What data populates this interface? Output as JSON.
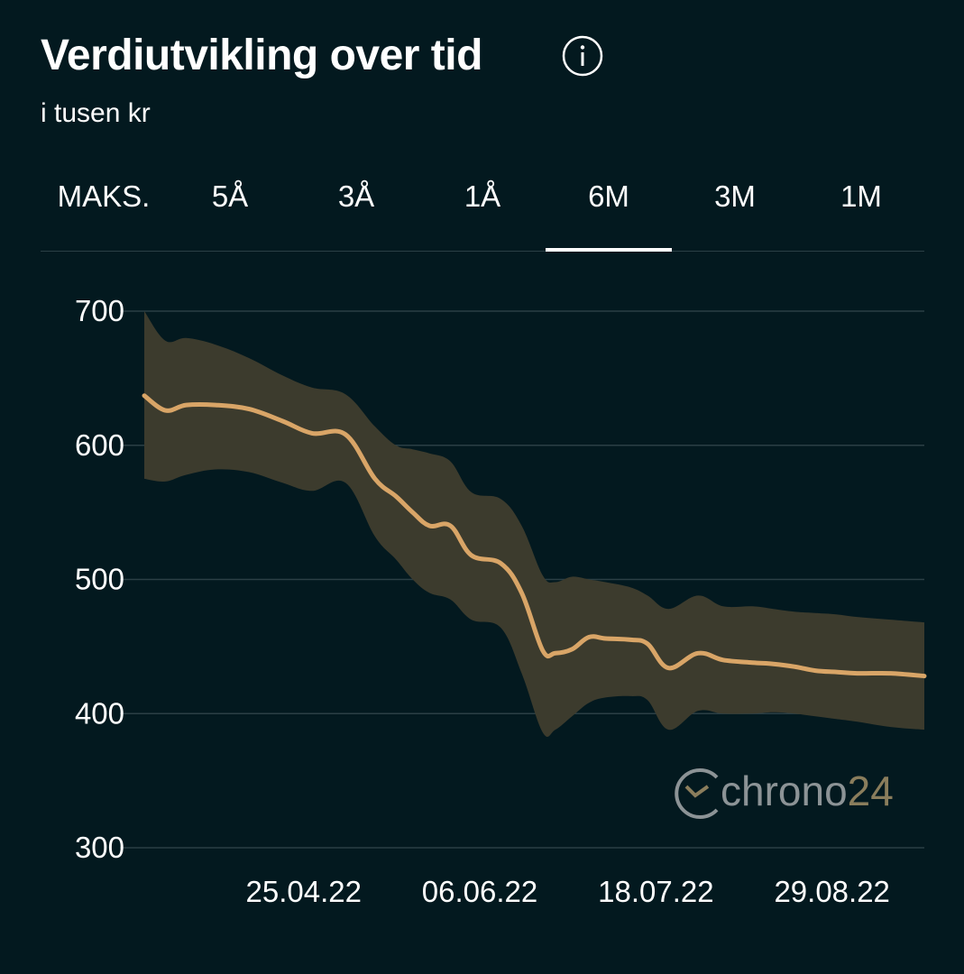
{
  "header": {
    "title": "Verdiutvikling over tid",
    "subtitle": "i tusen kr",
    "info_icon": "info-circle-icon"
  },
  "tabs": [
    {
      "label": "MAKS.",
      "active": false
    },
    {
      "label": "5Å",
      "active": false
    },
    {
      "label": "3Å",
      "active": false
    },
    {
      "label": "1Å",
      "active": false
    },
    {
      "label": "6M",
      "active": true
    },
    {
      "label": "3M",
      "active": false
    },
    {
      "label": "1M",
      "active": false
    }
  ],
  "watermark": {
    "brand_text": "chrono",
    "brand_number": "24",
    "icon": "clock-logo-icon"
  },
  "colors": {
    "background": "#03191f",
    "line": "#d9a567",
    "band": "#3c3b2d",
    "grid": "#2b3f45"
  },
  "chart_data": {
    "type": "line",
    "ylim": [
      300,
      700
    ],
    "y_ticks": [
      700,
      600,
      500,
      400,
      300
    ],
    "x_tick_labels": [
      "25.04.22",
      "06.06.22",
      "18.07.22",
      "29.08.22"
    ],
    "x_tick_days": [
      38,
      80,
      122,
      164
    ],
    "x_range_days": [
      0,
      186
    ],
    "series": [
      {
        "role": "median",
        "x_days": [
          0,
          5,
          10,
          17,
          25,
          33,
          40,
          48,
          55,
          60,
          64,
          68,
          73,
          78,
          85,
          90,
          95,
          98,
          102,
          106,
          110,
          116,
          120,
          125,
          132,
          138,
          145,
          150,
          155,
          160,
          165,
          170,
          178,
          186
        ],
        "values": [
          637,
          626,
          630,
          630,
          627,
          618,
          609,
          608,
          575,
          562,
          550,
          540,
          540,
          518,
          512,
          490,
          447,
          445,
          448,
          457,
          456,
          455,
          452,
          434,
          445,
          440,
          438,
          437,
          435,
          432,
          431,
          430,
          430,
          428
        ]
      },
      {
        "role": "upper",
        "x_days": [
          0,
          5,
          10,
          17,
          25,
          33,
          40,
          48,
          55,
          60,
          64,
          68,
          73,
          78,
          85,
          90,
          95,
          98,
          102,
          106,
          110,
          116,
          120,
          125,
          132,
          138,
          145,
          150,
          155,
          160,
          165,
          170,
          178,
          186
        ],
        "values": [
          700,
          678,
          680,
          675,
          665,
          652,
          643,
          638,
          614,
          600,
          597,
          594,
          588,
          565,
          560,
          540,
          503,
          498,
          502,
          500,
          498,
          494,
          488,
          478,
          488,
          480,
          480,
          478,
          476,
          475,
          474,
          472,
          470,
          468
        ]
      },
      {
        "role": "lower",
        "x_days": [
          0,
          5,
          10,
          17,
          25,
          33,
          40,
          48,
          55,
          60,
          64,
          68,
          73,
          78,
          85,
          90,
          95,
          98,
          102,
          106,
          110,
          116,
          120,
          125,
          132,
          138,
          145,
          150,
          155,
          160,
          165,
          170,
          178,
          186
        ],
        "values": [
          575,
          573,
          578,
          582,
          580,
          572,
          566,
          572,
          532,
          515,
          500,
          490,
          485,
          470,
          464,
          430,
          386,
          388,
          398,
          408,
          412,
          413,
          410,
          388,
          402,
          400,
          400,
          401,
          400,
          398,
          396,
          394,
          390,
          388
        ]
      }
    ]
  }
}
